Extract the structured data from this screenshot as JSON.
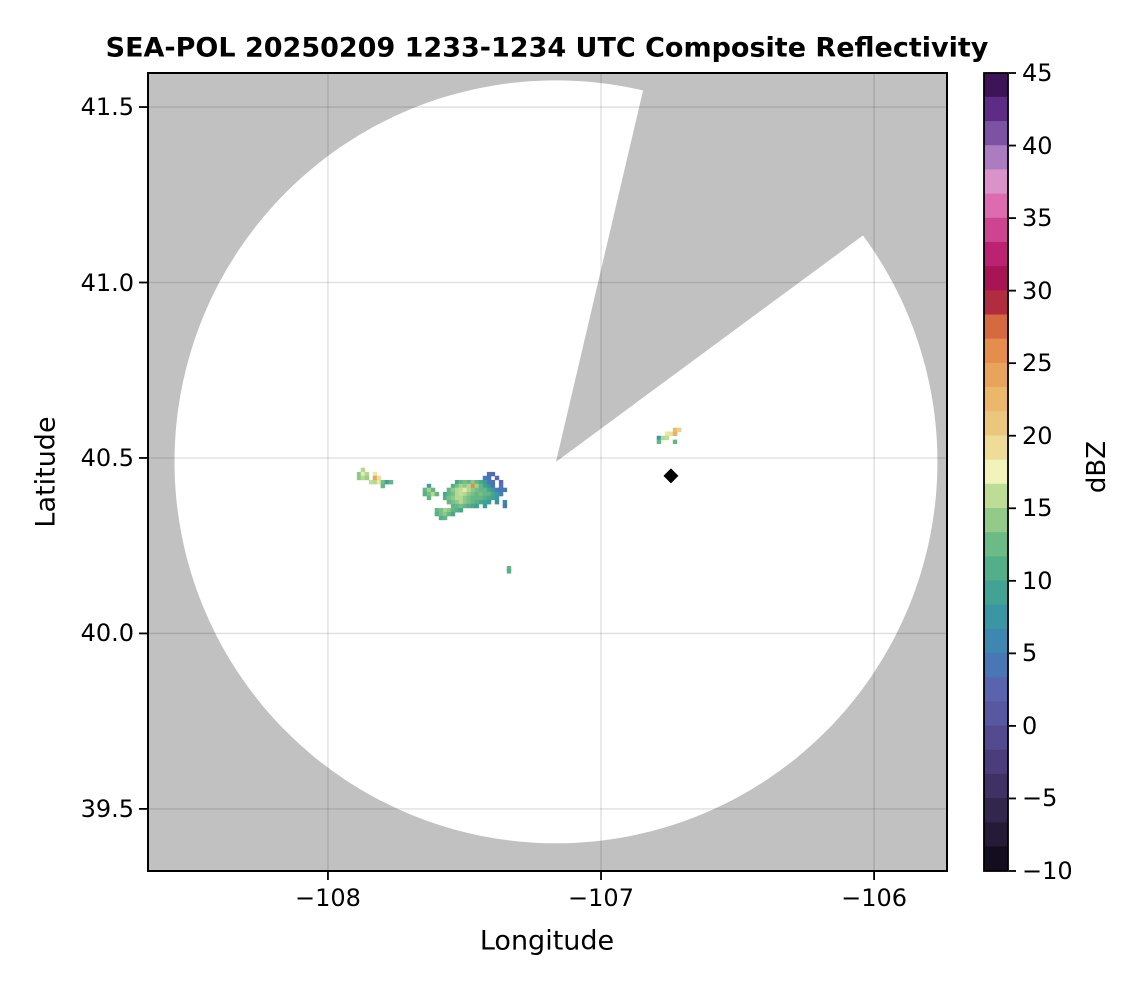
{
  "chart_data": {
    "type": "radar_ppi_map",
    "title": "SEA-POL 20250209 1233-1234 UTC Composite Reflectivity",
    "xlabel": "Longitude",
    "ylabel": "Latitude",
    "xlim": [
      -108.659,
      -105.733
    ],
    "ylim": [
      39.323,
      41.597
    ],
    "grid": true,
    "x_ticks": [
      {
        "value": -108,
        "label": "−108"
      },
      {
        "value": -107,
        "label": "−107"
      },
      {
        "value": -106,
        "label": "−106"
      }
    ],
    "y_ticks": [
      {
        "value": 41.5,
        "label": "41.5"
      },
      {
        "value": 41.0,
        "label": "41.0"
      },
      {
        "value": 40.5,
        "label": "40.5"
      },
      {
        "value": 40.0,
        "label": "40.0"
      },
      {
        "value": 39.5,
        "label": "39.5"
      }
    ],
    "colors": {
      "background": "#ffffff",
      "no_data": "#c1c1c1",
      "coverage": "#ffffff",
      "grid": "rgba(0,0,0,0.13)",
      "spine": "#000000",
      "marker": "#000000"
    },
    "colorbar": {
      "label": "dBZ",
      "min": -10,
      "max": 45,
      "n_segments": 33,
      "ticks": [
        {
          "value": 45,
          "label": "45"
        },
        {
          "value": 40,
          "label": "40"
        },
        {
          "value": 35,
          "label": "35"
        },
        {
          "value": 30,
          "label": "30"
        },
        {
          "value": 25,
          "label": "25"
        },
        {
          "value": 20,
          "label": "20"
        },
        {
          "value": 15,
          "label": "15"
        },
        {
          "value": 10,
          "label": "10"
        },
        {
          "value": 5,
          "label": "5"
        },
        {
          "value": 0,
          "label": "0"
        },
        {
          "value": -5,
          "label": "−5"
        },
        {
          "value": -10,
          "label": "−10"
        }
      ],
      "palette_stops": [
        [
          -10,
          "#0b0614"
        ],
        [
          -7.5,
          "#251b36"
        ],
        [
          -5,
          "#3a2b58"
        ],
        [
          -2.5,
          "#4b3d7c"
        ],
        [
          0,
          "#57509a"
        ],
        [
          2.5,
          "#5a64ae"
        ],
        [
          5,
          "#4180b8"
        ],
        [
          7.5,
          "#3996a2"
        ],
        [
          10,
          "#47a88c"
        ],
        [
          12.5,
          "#6cba85"
        ],
        [
          15,
          "#a6d28d"
        ],
        [
          16.5,
          "#cfe49b"
        ],
        [
          17.5,
          "#f2f2bb"
        ],
        [
          19,
          "#eedf9a"
        ],
        [
          20,
          "#ebcf86"
        ],
        [
          22.5,
          "#eab76d"
        ],
        [
          25,
          "#e79a54"
        ],
        [
          27,
          "#df7b43"
        ],
        [
          28.5,
          "#c2443a"
        ],
        [
          30,
          "#9d0e47"
        ],
        [
          32.5,
          "#bb2272"
        ],
        [
          35,
          "#d6579f"
        ],
        [
          36.5,
          "#e07cbb"
        ],
        [
          38,
          "#d89dd0"
        ],
        [
          40,
          "#8a65b4"
        ],
        [
          42.5,
          "#5e2b85"
        ],
        [
          45,
          "#2d0941"
        ]
      ]
    },
    "radar": {
      "center_lon": -107.165,
      "center_lat": 40.489,
      "radius_deg_lat": 1.087,
      "blocked_sector_azimuth_deg": [
        13.2,
        53.6
      ]
    },
    "site_marker": {
      "lon": -106.744,
      "lat": 40.449,
      "symbol": "diamond",
      "color": "#000000"
    },
    "cell_size_deg": [
      0.0147,
      0.0114
    ],
    "echo_cells": [
      [
        -107.872,
        40.466,
        15.5
      ],
      [
        -107.886,
        40.454,
        14
      ],
      [
        -107.872,
        40.454,
        17
      ],
      [
        -107.857,
        40.454,
        15.5
      ],
      [
        -107.828,
        40.454,
        18.5
      ],
      [
        -107.886,
        40.443,
        14
      ],
      [
        -107.872,
        40.443,
        15.5
      ],
      [
        -107.857,
        40.443,
        14.5
      ],
      [
        -107.828,
        40.443,
        24
      ],
      [
        -107.813,
        40.443,
        19
      ],
      [
        -107.842,
        40.431,
        16
      ],
      [
        -107.828,
        40.431,
        15.5
      ],
      [
        -107.813,
        40.431,
        17
      ],
      [
        -107.799,
        40.431,
        13
      ],
      [
        -107.784,
        40.431,
        9
      ],
      [
        -107.769,
        40.431,
        12
      ],
      [
        -107.799,
        40.42,
        12
      ],
      [
        -107.63,
        40.42,
        9
      ],
      [
        -107.645,
        40.409,
        12
      ],
      [
        -107.63,
        40.409,
        15
      ],
      [
        -107.615,
        40.409,
        12
      ],
      [
        -107.645,
        40.397,
        11
      ],
      [
        -107.63,
        40.397,
        13
      ],
      [
        -107.615,
        40.397,
        15.5
      ],
      [
        -107.601,
        40.397,
        12
      ],
      [
        -107.63,
        40.386,
        12
      ],
      [
        -107.41,
        40.454,
        4
      ],
      [
        -107.396,
        40.454,
        3
      ],
      [
        -107.425,
        40.443,
        5
      ],
      [
        -107.41,
        40.443,
        4
      ],
      [
        -107.381,
        40.443,
        3
      ],
      [
        -107.527,
        40.431,
        10
      ],
      [
        -107.513,
        40.431,
        12
      ],
      [
        -107.498,
        40.431,
        13
      ],
      [
        -107.484,
        40.431,
        12
      ],
      [
        -107.469,
        40.431,
        14
      ],
      [
        -107.455,
        40.431,
        12
      ],
      [
        -107.44,
        40.431,
        10
      ],
      [
        -107.425,
        40.431,
        8
      ],
      [
        -107.41,
        40.431,
        4
      ],
      [
        -107.396,
        40.431,
        4
      ],
      [
        -107.366,
        40.431,
        3
      ],
      [
        -107.542,
        40.42,
        11
      ],
      [
        -107.527,
        40.42,
        13
      ],
      [
        -107.513,
        40.42,
        15
      ],
      [
        -107.498,
        40.42,
        14
      ],
      [
        -107.484,
        40.42,
        15.5
      ],
      [
        -107.469,
        40.42,
        26
      ],
      [
        -107.455,
        40.42,
        15
      ],
      [
        -107.44,
        40.42,
        12
      ],
      [
        -107.425,
        40.42,
        9
      ],
      [
        -107.41,
        40.42,
        7
      ],
      [
        -107.396,
        40.42,
        4
      ],
      [
        -107.366,
        40.42,
        4
      ],
      [
        -107.557,
        40.409,
        12
      ],
      [
        -107.542,
        40.409,
        14
      ],
      [
        -107.527,
        40.409,
        15.5
      ],
      [
        -107.513,
        40.409,
        16
      ],
      [
        -107.498,
        40.409,
        17
      ],
      [
        -107.484,
        40.409,
        15.5
      ],
      [
        -107.469,
        40.409,
        14
      ],
      [
        -107.455,
        40.409,
        13
      ],
      [
        -107.44,
        40.409,
        12
      ],
      [
        -107.425,
        40.409,
        12
      ],
      [
        -107.41,
        40.409,
        10
      ],
      [
        -107.396,
        40.409,
        8
      ],
      [
        -107.381,
        40.409,
        5
      ],
      [
        -107.366,
        40.409,
        4
      ],
      [
        -107.352,
        40.409,
        4
      ],
      [
        -107.571,
        40.397,
        10
      ],
      [
        -107.557,
        40.397,
        12
      ],
      [
        -107.542,
        40.397,
        13
      ],
      [
        -107.527,
        40.397,
        15.5
      ],
      [
        -107.513,
        40.397,
        16
      ],
      [
        -107.498,
        40.397,
        15.5
      ],
      [
        -107.484,
        40.397,
        14
      ],
      [
        -107.469,
        40.397,
        13
      ],
      [
        -107.455,
        40.397,
        12
      ],
      [
        -107.44,
        40.397,
        13
      ],
      [
        -107.425,
        40.397,
        12
      ],
      [
        -107.41,
        40.397,
        12
      ],
      [
        -107.396,
        40.397,
        10
      ],
      [
        -107.381,
        40.397,
        8
      ],
      [
        -107.366,
        40.397,
        5
      ],
      [
        -107.571,
        40.386,
        11
      ],
      [
        -107.557,
        40.386,
        13
      ],
      [
        -107.542,
        40.386,
        14
      ],
      [
        -107.527,
        40.386,
        15.5
      ],
      [
        -107.513,
        40.386,
        15.5
      ],
      [
        -107.498,
        40.386,
        14
      ],
      [
        -107.484,
        40.386,
        13
      ],
      [
        -107.469,
        40.386,
        12
      ],
      [
        -107.455,
        40.386,
        12
      ],
      [
        -107.44,
        40.386,
        12
      ],
      [
        -107.425,
        40.386,
        11
      ],
      [
        -107.41,
        40.386,
        10
      ],
      [
        -107.396,
        40.386,
        9
      ],
      [
        -107.381,
        40.386,
        8
      ],
      [
        -107.557,
        40.374,
        12
      ],
      [
        -107.542,
        40.374,
        13
      ],
      [
        -107.527,
        40.374,
        14
      ],
      [
        -107.513,
        40.374,
        15.5
      ],
      [
        -107.498,
        40.374,
        14
      ],
      [
        -107.484,
        40.374,
        13
      ],
      [
        -107.469,
        40.374,
        12
      ],
      [
        -107.455,
        40.374,
        11
      ],
      [
        -107.44,
        40.374,
        10
      ],
      [
        -107.425,
        40.374,
        9
      ],
      [
        -107.41,
        40.374,
        8
      ],
      [
        -107.381,
        40.374,
        7
      ],
      [
        -107.352,
        40.374,
        5
      ],
      [
        -107.542,
        40.363,
        12
      ],
      [
        -107.527,
        40.363,
        12
      ],
      [
        -107.513,
        40.363,
        13
      ],
      [
        -107.498,
        40.363,
        12
      ],
      [
        -107.484,
        40.363,
        11
      ],
      [
        -107.469,
        40.363,
        10
      ],
      [
        -107.455,
        40.363,
        9
      ],
      [
        -107.425,
        40.363,
        8
      ],
      [
        -107.352,
        40.363,
        4
      ],
      [
        -107.601,
        40.351,
        12
      ],
      [
        -107.586,
        40.351,
        13
      ],
      [
        -107.571,
        40.351,
        15
      ],
      [
        -107.557,
        40.351,
        14
      ],
      [
        -107.542,
        40.351,
        12
      ],
      [
        -107.527,
        40.351,
        11
      ],
      [
        -107.513,
        40.351,
        10
      ],
      [
        -107.601,
        40.34,
        11
      ],
      [
        -107.586,
        40.34,
        13
      ],
      [
        -107.571,
        40.34,
        14
      ],
      [
        -107.557,
        40.34,
        12
      ],
      [
        -107.542,
        40.34,
        10
      ],
      [
        -107.586,
        40.329,
        11
      ],
      [
        -107.571,
        40.329,
        12
      ],
      [
        -106.729,
        40.58,
        22
      ],
      [
        -106.714,
        40.58,
        20
      ],
      [
        -106.758,
        40.569,
        18.5
      ],
      [
        -106.744,
        40.569,
        19
      ],
      [
        -106.729,
        40.569,
        23
      ],
      [
        -106.788,
        40.557,
        8
      ],
      [
        -106.773,
        40.557,
        15.5
      ],
      [
        -106.758,
        40.557,
        16
      ],
      [
        -106.788,
        40.546,
        12
      ],
      [
        -106.729,
        40.546,
        12
      ],
      [
        -107.337,
        40.186,
        12
      ],
      [
        -107.337,
        40.177,
        11
      ]
    ]
  }
}
